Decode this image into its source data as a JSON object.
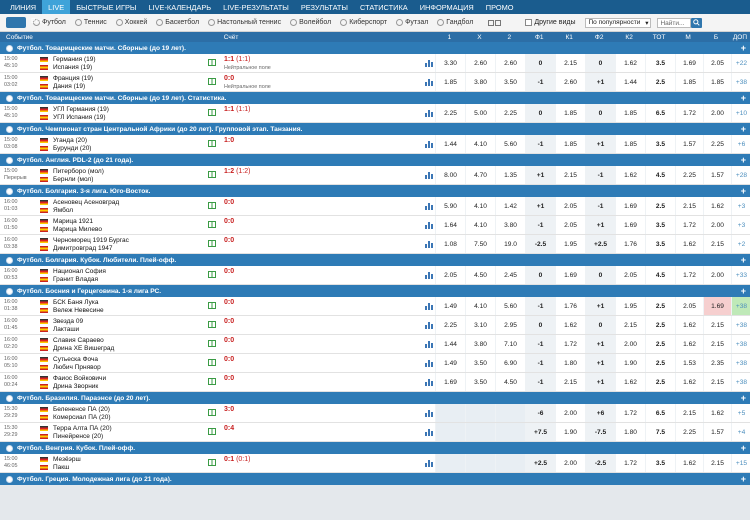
{
  "nav": [
    "ЛИНИЯ",
    "LIVE",
    "БЫСТРЫЕ ИГРЫ",
    "LIVE-КАЛЕНДАРЬ",
    "LIVE-РЕЗУЛЬТАТЫ",
    "РЕЗУЛЬТАТЫ",
    "СТАТИСТИКА",
    "ИНФОРМАЦИЯ",
    "ПРОМО"
  ],
  "filters": {
    "all_label": "Все",
    "sports": [
      "Футбол",
      "Теннис",
      "Хоккей",
      "Баскетбол",
      "Настольный теннис",
      "Волейбол",
      "Киберспорт",
      "Футзал",
      "Гандбол"
    ],
    "other_sports": "Другие виды",
    "sort_value": "По популярности",
    "search_placeholder": "Найти..."
  },
  "columns": [
    "Событие",
    "Счёт",
    "1",
    "X",
    "2",
    "Ф1",
    "К1",
    "Ф2",
    "К2",
    "ТОТ",
    "М",
    "Б",
    "ДОП"
  ],
  "leagues": [
    {
      "title": "Футбол. Товарищеские матчи. Сборные (до 19 лет).",
      "events": [
        {
          "time": "15:00",
          "clock": "45:10",
          "home": "Германия (19)",
          "away": "Испания (19)",
          "score": "1:1",
          "sub": "(1:1)",
          "note": "Нейтральное поле",
          "odds": [
            "3.30",
            "2.60",
            "2.60",
            "0",
            "2.15",
            "0",
            "1.62",
            "3.5",
            "1.69",
            "2.05",
            "+22"
          ]
        },
        {
          "time": "15:00",
          "clock": "03:02",
          "home": "Франция (19)",
          "away": "Дания (19)",
          "score": "0:0",
          "sub": "",
          "note": "Нейтральное поле",
          "odds": [
            "1.85",
            "3.80",
            "3.50",
            "-1",
            "2.60",
            "+1",
            "1.44",
            "2.5",
            "1.85",
            "1.85",
            "+38"
          ]
        }
      ]
    },
    {
      "title": "Футбол. Товарищеские матчи. Сборные (до 19 лет). Статистика.",
      "events": [
        {
          "time": "15:00",
          "clock": "45:10",
          "home": "УГЛ Германия (19)",
          "away": "УГЛ Испания (19)",
          "score": "1:1",
          "sub": "(1:1)",
          "note": "",
          "odds": [
            "2.25",
            "5.00",
            "2.25",
            "0",
            "1.85",
            "0",
            "1.85",
            "6.5",
            "1.72",
            "2.00",
            "+10"
          ]
        }
      ]
    },
    {
      "title": "Футбол. Чемпионат стран Центральной Африки (до 20 лет). Групповой этап. Танзания.",
      "events": [
        {
          "time": "15:00",
          "clock": "03:08",
          "home": "Уганда (20)",
          "away": "Бурунди (20)",
          "score": "1:0",
          "sub": "",
          "note": "",
          "odds": [
            "1.44",
            "4.10",
            "5.60",
            "-1",
            "1.85",
            "+1",
            "1.85",
            "3.5",
            "1.57",
            "2.25",
            "+6"
          ]
        }
      ]
    },
    {
      "title": "Футбол. Англия. PDL-2 (до 21 года).",
      "events": [
        {
          "time": "15:00",
          "clock": "Перерыв",
          "home": "Питерборо (мол)",
          "away": "Бернли (мол)",
          "score": "1:2",
          "sub": "(1:2)",
          "note": "",
          "odds": [
            "8.00",
            "4.70",
            "1.35",
            "+1",
            "2.15",
            "-1",
            "1.62",
            "4.5",
            "2.25",
            "1.57",
            "+28"
          ]
        }
      ]
    },
    {
      "title": "Футбол. Болгария. 3-я лига. Юго-Восток.",
      "events": [
        {
          "time": "16:00",
          "clock": "01:03",
          "home": "Асеновец Асеновград",
          "away": "Ямбол",
          "score": "0:0",
          "sub": "",
          "note": "",
          "odds": [
            "5.90",
            "4.10",
            "1.42",
            "+1",
            "2.05",
            "-1",
            "1.69",
            "2.5",
            "2.15",
            "1.62",
            "+3"
          ]
        },
        {
          "time": "16:00",
          "clock": "01:50",
          "home": "Марица 1921",
          "away": "Марица Милево",
          "score": "0:0",
          "sub": "",
          "note": "",
          "odds": [
            "1.64",
            "4.10",
            "3.80",
            "-1",
            "2.05",
            "+1",
            "1.69",
            "3.5",
            "1.72",
            "2.00",
            "+3"
          ]
        },
        {
          "time": "16:00",
          "clock": "03:38",
          "home": "Черноморец 1919 Бургас",
          "away": "Димитровград 1947",
          "score": "0:0",
          "sub": "",
          "note": "",
          "odds": [
            "1.08",
            "7.50",
            "19.0",
            "-2.5",
            "1.95",
            "+2.5",
            "1.76",
            "3.5",
            "1.62",
            "2.15",
            "+2"
          ]
        }
      ]
    },
    {
      "title": "Футбол. Болгария. Кубок. Любители. Плей-офф.",
      "events": [
        {
          "time": "16:00",
          "clock": "00:53",
          "home": "Национал София",
          "away": "Гранит Владая",
          "score": "0:0",
          "sub": "",
          "note": "",
          "odds": [
            "2.05",
            "4.50",
            "2.45",
            "0",
            "1.69",
            "0",
            "2.05",
            "4.5",
            "1.72",
            "2.00",
            "+33"
          ]
        }
      ]
    },
    {
      "title": "Футбол. Босния и Герцеговина. 1-я лига РС.",
      "events": [
        {
          "time": "16:00",
          "clock": "01:38",
          "home": "БСК Баня Лука",
          "away": "Вележ Невесине",
          "score": "0:0",
          "sub": "",
          "note": "",
          "odds": [
            "1.49",
            "4.10",
            "5.60",
            "-1",
            "1.76",
            "+1",
            "1.95",
            "2.5",
            "2.05",
            "1.69",
            "+38"
          ],
          "hl": [
            9,
            10
          ]
        },
        {
          "time": "16:00",
          "clock": "01:45",
          "home": "Звезда 09",
          "away": "Лакташи",
          "score": "0:0",
          "sub": "",
          "note": "",
          "odds": [
            "2.25",
            "3.10",
            "2.95",
            "0",
            "1.62",
            "0",
            "2.15",
            "2.5",
            "1.62",
            "2.15",
            "+38"
          ]
        },
        {
          "time": "16:00",
          "clock": "02:20",
          "home": "Славия Сараево",
          "away": "Дрина ХЕ Вишеград",
          "score": "0:0",
          "sub": "",
          "note": "",
          "odds": [
            "1.44",
            "3.80",
            "7.10",
            "-1",
            "1.72",
            "+1",
            "2.00",
            "2.5",
            "1.62",
            "2.15",
            "+38"
          ]
        },
        {
          "time": "16:00",
          "clock": "05:10",
          "home": "Сутьеска Фоча",
          "away": "Любич Прнявор",
          "score": "0:0",
          "sub": "",
          "note": "",
          "odds": [
            "1.49",
            "3.50",
            "6.90",
            "-1",
            "1.80",
            "+1",
            "1.90",
            "2.5",
            "1.53",
            "2.35",
            "+38"
          ]
        },
        {
          "time": "16:00",
          "clock": "00:24",
          "home": "Фаиос Войковичи",
          "away": "Дрина Зворник",
          "score": "0:0",
          "sub": "",
          "note": "",
          "odds": [
            "1.69",
            "3.50",
            "4.50",
            "-1",
            "2.15",
            "+1",
            "1.62",
            "2.5",
            "1.62",
            "2.15",
            "+38"
          ]
        }
      ]
    },
    {
      "title": "Футбол. Бразилия. Параэнсе (до 20 лет).",
      "events": [
        {
          "time": "15:30",
          "clock": "29:29",
          "home": "Белененсе ПА (20)",
          "away": "Комерсиал ПА (20)",
          "score": "3:0",
          "sub": "",
          "note": "",
          "odds": [
            "",
            "",
            "",
            "-6",
            "2.00",
            "+6",
            "1.72",
            "6.5",
            "2.15",
            "1.62",
            "+5"
          ]
        },
        {
          "time": "15:30",
          "clock": "29:29",
          "home": "Терра Алта ПА (20)",
          "away": "Пинейренсе (20)",
          "score": "0:4",
          "sub": "",
          "note": "",
          "odds": [
            "",
            "",
            "",
            "+7.5",
            "1.90",
            "-7.5",
            "1.80",
            "7.5",
            "2.25",
            "1.57",
            "+4"
          ]
        }
      ]
    },
    {
      "title": "Футбол. Венгрия. Кубок. Плей-офф.",
      "events": [
        {
          "time": "15:00",
          "clock": "46:05",
          "home": "Мезёэрш",
          "away": "Пакш",
          "score": "0:1",
          "sub": "(0:1)",
          "note": "",
          "odds": [
            "",
            "",
            "",
            "+2.5",
            "2.00",
            "-2.5",
            "1.72",
            "3.5",
            "1.62",
            "2.15",
            "+15"
          ]
        }
      ]
    },
    {
      "title": "Футбол. Греция. Молодежная лига (до 21 года).",
      "events": []
    }
  ]
}
